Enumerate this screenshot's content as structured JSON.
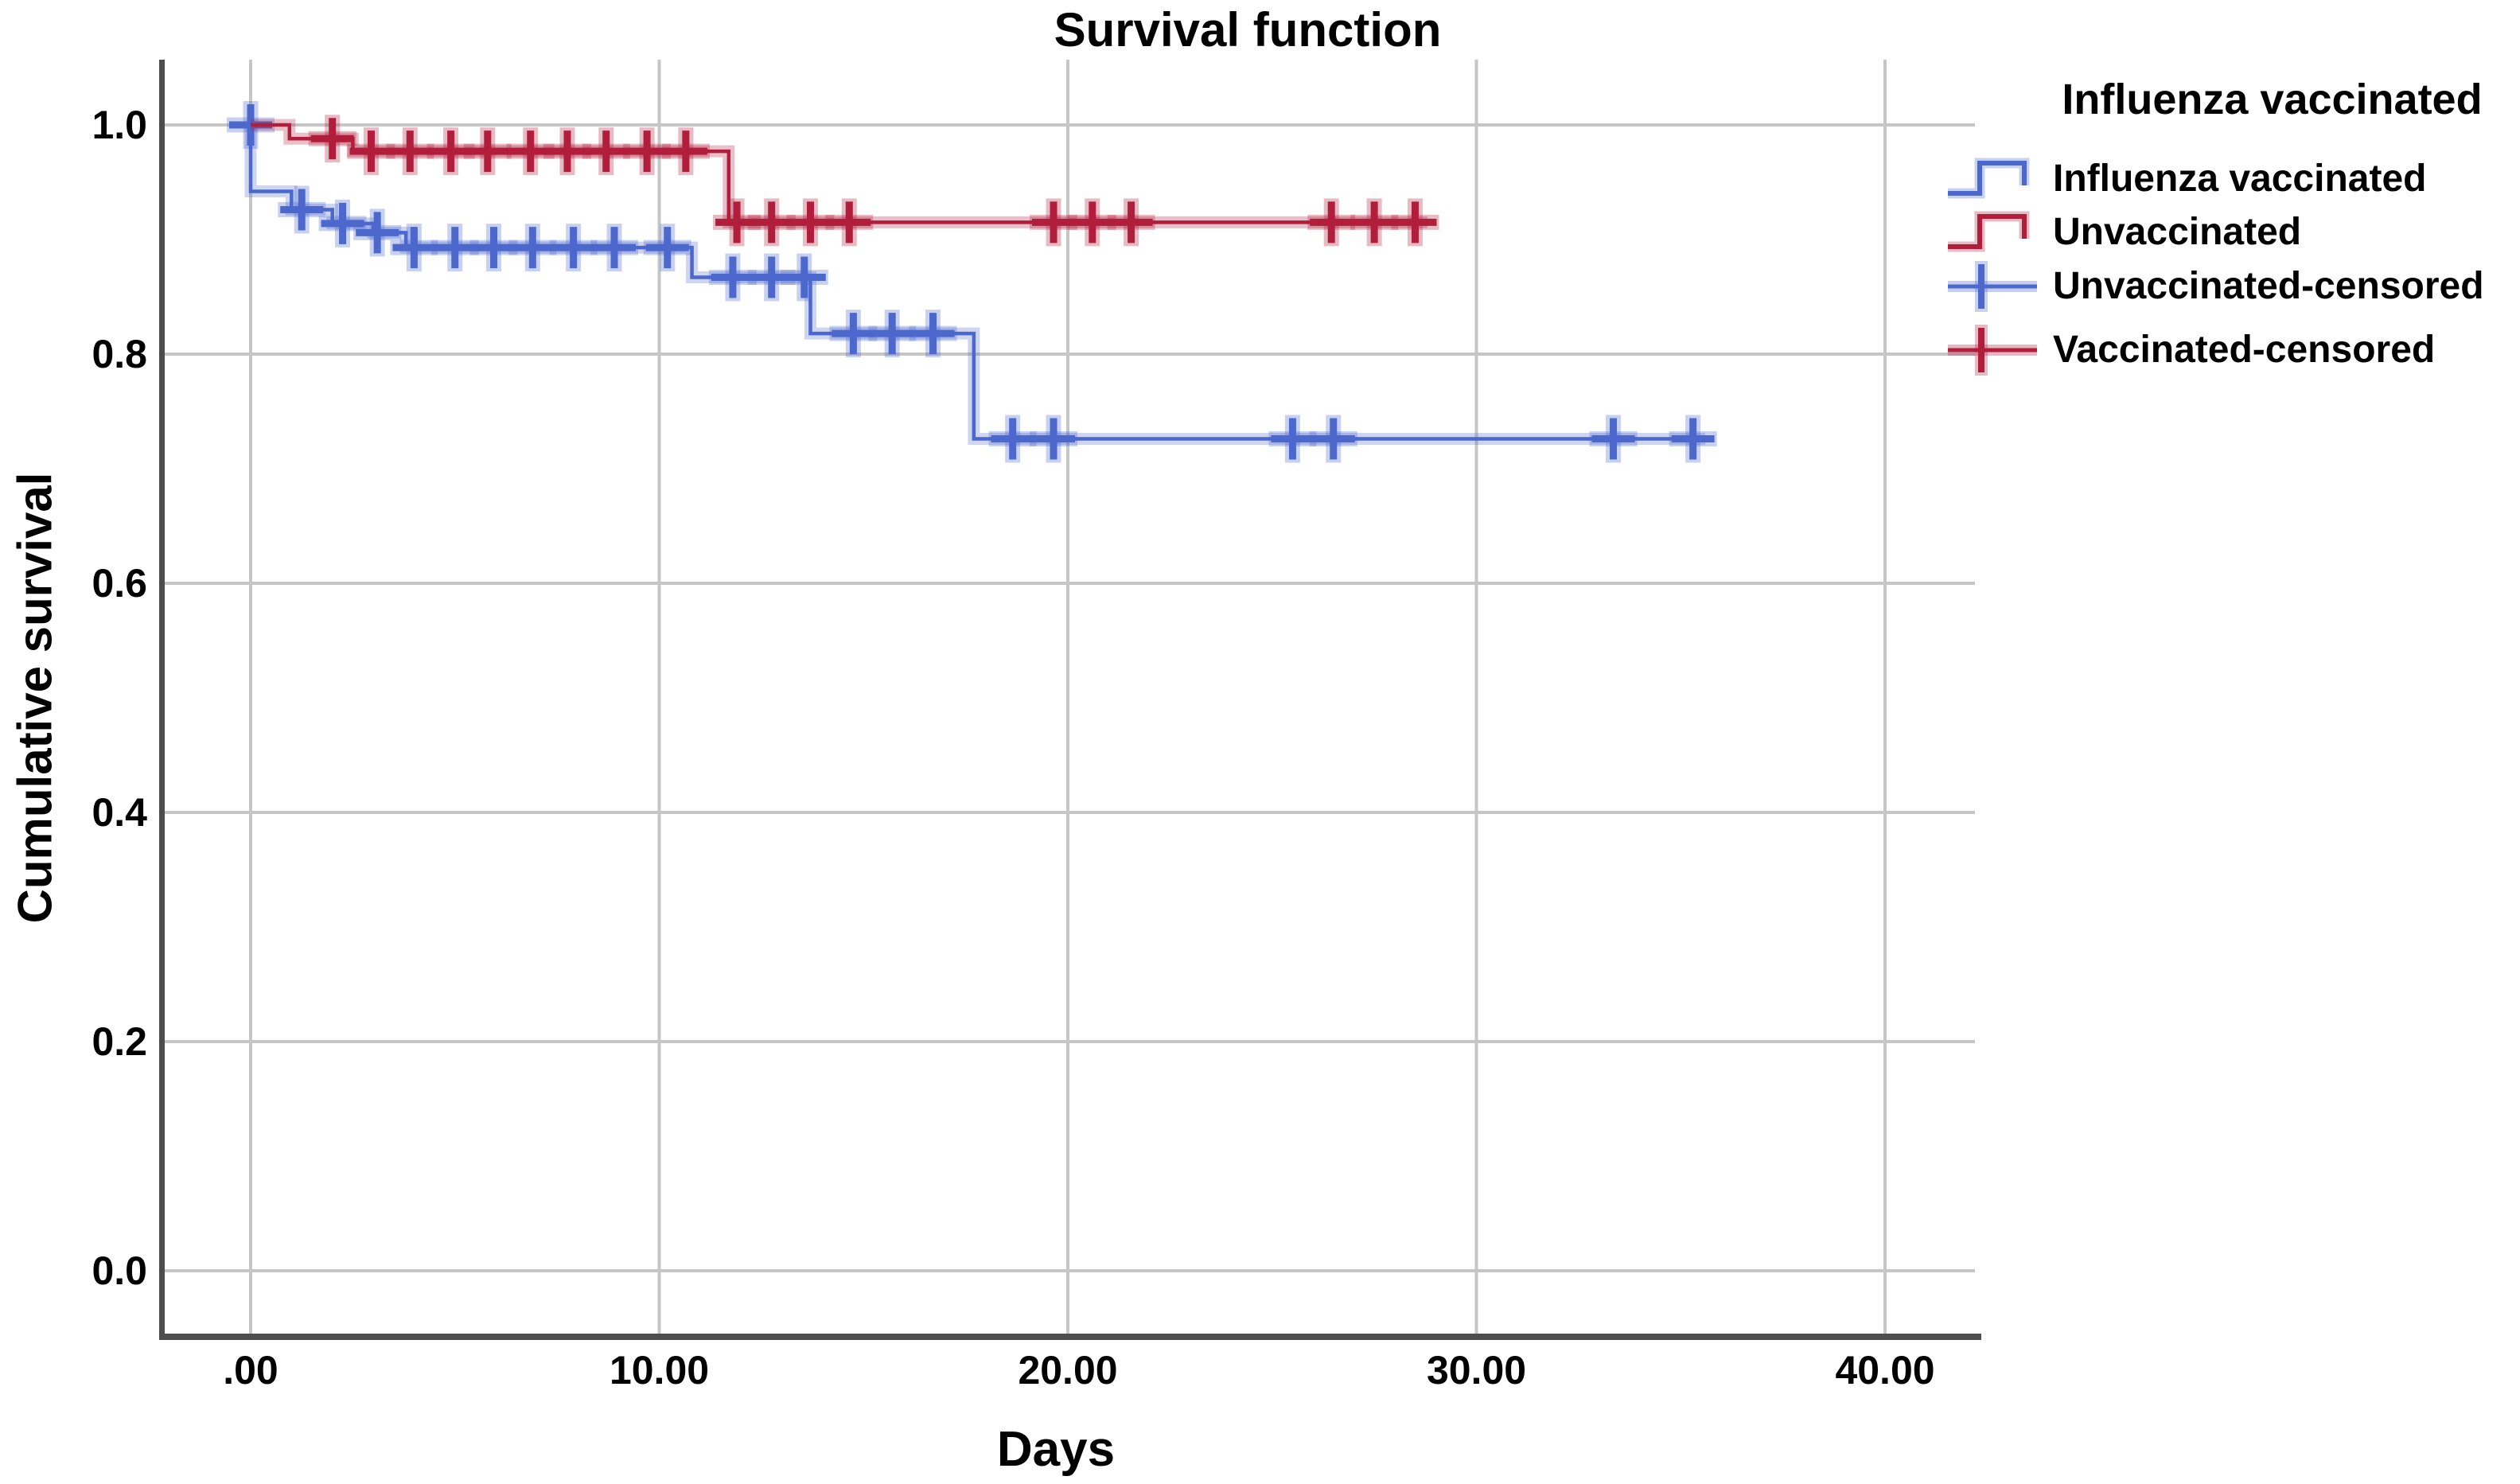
{
  "chart_data": {
    "type": "line",
    "subtype": "kaplan_meier_step_survival",
    "title": "Survival function",
    "xlabel": "Days",
    "ylabel": "Cumulative survival",
    "legend_title": "Influenza vaccinated",
    "grid": true,
    "legend_position": "right",
    "xlim": [
      -2.2,
      42.3
    ],
    "ylim": [
      -0.06,
      1.06
    ],
    "x_ticks": [
      {
        "value": 0,
        "label": ".00"
      },
      {
        "value": 10,
        "label": "10.00"
      },
      {
        "value": 20,
        "label": "20.00"
      },
      {
        "value": 30,
        "label": "30.00"
      },
      {
        "value": 40,
        "label": "40.00"
      }
    ],
    "y_ticks": [
      {
        "value": 1.0,
        "label": "1.0"
      },
      {
        "value": 0.8,
        "label": "0.8"
      },
      {
        "value": 0.6,
        "label": "0.6"
      },
      {
        "value": 0.4,
        "label": "0.4"
      },
      {
        "value": 0.2,
        "label": "0.2"
      },
      {
        "value": 0.0,
        "label": "0.0"
      }
    ],
    "series": [
      {
        "id": "influenza_vaccinated",
        "name": "Influenza vaccinated",
        "color": "#4d68cc",
        "steps": [
          [
            0,
            1.0
          ],
          [
            0,
            0.942
          ],
          [
            1,
            0.926
          ],
          [
            2,
            0.914
          ],
          [
            3,
            0.906
          ],
          [
            3.8,
            0.893
          ],
          [
            10.8,
            0.867
          ],
          [
            13.7,
            0.818
          ],
          [
            17.7,
            0.726
          ]
        ],
        "end_time": 35.6,
        "censored": [
          [
            0,
            1.0
          ],
          [
            1.25,
            0.926
          ],
          [
            2.25,
            0.914
          ],
          [
            3.1,
            0.906
          ],
          [
            4.0,
            0.893
          ],
          [
            5.0,
            0.893
          ],
          [
            5.95,
            0.893
          ],
          [
            6.9,
            0.893
          ],
          [
            7.9,
            0.893
          ],
          [
            8.9,
            0.893
          ],
          [
            10.2,
            0.893
          ],
          [
            11.8,
            0.867
          ],
          [
            12.75,
            0.867
          ],
          [
            13.55,
            0.867
          ],
          [
            14.75,
            0.818
          ],
          [
            15.7,
            0.818
          ],
          [
            16.7,
            0.818
          ],
          [
            18.65,
            0.726
          ],
          [
            19.65,
            0.726
          ],
          [
            25.5,
            0.726
          ],
          [
            26.5,
            0.726
          ],
          [
            33.35,
            0.726
          ],
          [
            35.3,
            0.726
          ]
        ]
      },
      {
        "id": "unvaccinated",
        "name": "Unvaccinated",
        "color": "#b01e3c",
        "steps": [
          [
            0,
            1.0
          ],
          [
            0.95,
            0.988
          ],
          [
            2.5,
            0.977
          ],
          [
            11.7,
            0.915
          ]
        ],
        "end_time": 28.8,
        "censored": [
          [
            2.0,
            0.988
          ],
          [
            2.95,
            0.977
          ],
          [
            3.9,
            0.977
          ],
          [
            4.9,
            0.977
          ],
          [
            5.8,
            0.977
          ],
          [
            6.85,
            0.977
          ],
          [
            7.75,
            0.977
          ],
          [
            8.7,
            0.977
          ],
          [
            9.7,
            0.977
          ],
          [
            10.65,
            0.977
          ],
          [
            11.9,
            0.915
          ],
          [
            12.75,
            0.915
          ],
          [
            13.7,
            0.915
          ],
          [
            14.65,
            0.915
          ],
          [
            19.65,
            0.915
          ],
          [
            20.6,
            0.915
          ],
          [
            21.55,
            0.915
          ],
          [
            26.45,
            0.915
          ],
          [
            27.5,
            0.915
          ],
          [
            28.5,
            0.915
          ]
        ]
      }
    ],
    "legend_items": [
      {
        "label": "Influenza vaccinated",
        "swatch": "step",
        "color": "#4d68cc"
      },
      {
        "label": "Unvaccinated",
        "swatch": "step",
        "color": "#b01e3c"
      },
      {
        "label": "Unvaccinated-censored",
        "swatch": "censor",
        "color": "#4d68cc"
      },
      {
        "label": "Vaccinated-censored",
        "swatch": "censor",
        "color": "#b01e3c"
      }
    ],
    "colors": {
      "grid": "#c6c6c6",
      "axis": "#4d4d4d",
      "text": "#000000"
    }
  }
}
